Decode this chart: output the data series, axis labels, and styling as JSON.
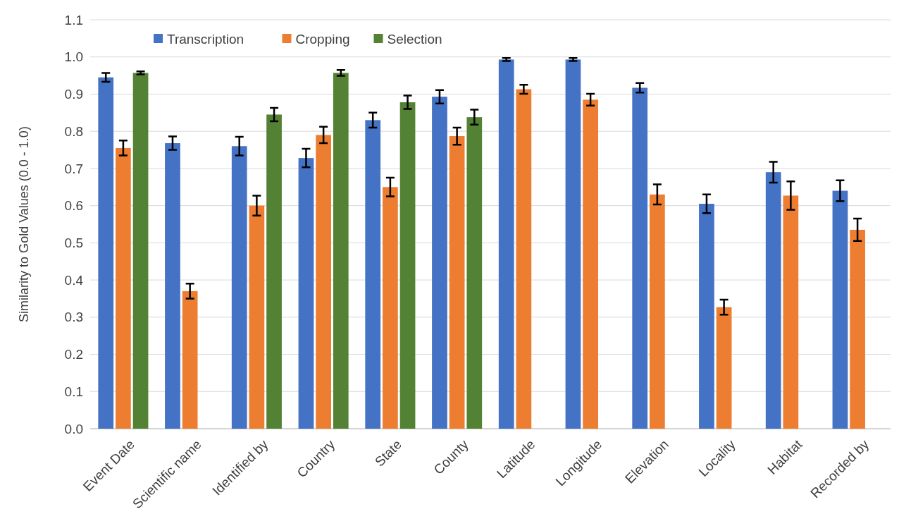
{
  "chart_data": {
    "type": "bar",
    "ylabel": "Similarity to Gold Values (0.0 - 1.0)",
    "categories": [
      "Event Date",
      "Scientific name",
      "Identified by",
      "Country",
      "State",
      "County",
      "Latitude",
      "Longitude",
      "Elevation",
      "Locality",
      "Habitat",
      "Recorded by"
    ],
    "series": [
      {
        "name": "Transcription",
        "color": "#4472c4",
        "values": [
          0.945,
          0.768,
          0.76,
          0.728,
          0.83,
          0.893,
          0.993,
          0.993,
          0.917,
          0.605,
          0.69,
          0.64
        ],
        "errors": [
          0.012,
          0.018,
          0.025,
          0.025,
          0.02,
          0.018,
          0.004,
          0.004,
          0.013,
          0.025,
          0.028,
          0.028
        ]
      },
      {
        "name": "Cropping",
        "color": "#ed7d31",
        "values": [
          0.755,
          0.37,
          0.6,
          0.79,
          0.65,
          0.787,
          0.913,
          0.885,
          0.63,
          0.327,
          0.627,
          0.535
        ],
        "errors": [
          0.02,
          0.02,
          0.027,
          0.022,
          0.025,
          0.023,
          0.012,
          0.016,
          0.027,
          0.02,
          0.038,
          0.03
        ]
      },
      {
        "name": "Selection",
        "color": "#548235",
        "values": [
          0.957,
          null,
          0.845,
          0.957,
          0.878,
          0.838,
          null,
          null,
          null,
          null,
          null,
          null
        ],
        "errors": [
          0.004,
          null,
          0.018,
          0.008,
          0.018,
          0.02,
          null,
          null,
          null,
          null,
          null,
          null
        ]
      }
    ],
    "ylim": [
      0,
      1.1
    ],
    "yticks": [
      {
        "value": 0,
        "label": "0.0"
      },
      0.1,
      0.2,
      0.3,
      0.4,
      0.5,
      0.6,
      0.7,
      0.8,
      0.9,
      {
        "value": 1,
        "label": "1.0"
      },
      1.1
    ],
    "grid": "y",
    "legend": "top left"
  }
}
